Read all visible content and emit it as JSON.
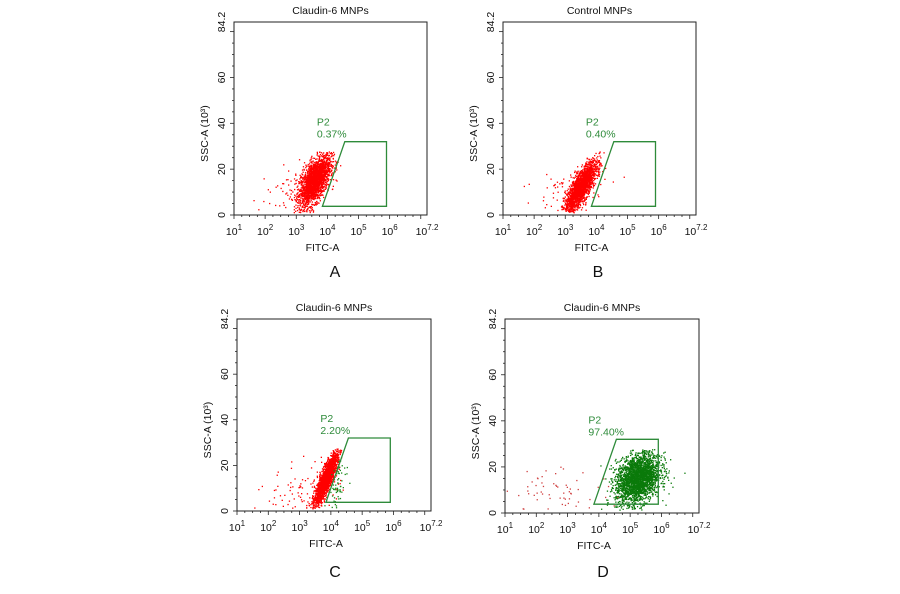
{
  "chart_data": [
    {
      "type": "scatter",
      "panel_label": "A",
      "title": "Claudin-6 MNPs",
      "xlabel": "FITC-A",
      "ylabel": "SSC-A (10³)",
      "xscale": "log",
      "xlim_log10": [
        1,
        7.2
      ],
      "ylim": [
        0,
        84.2
      ],
      "xtick_base": "10",
      "xtick_exponents": [
        "1",
        "2",
        "3",
        "4",
        "5",
        "6",
        "7.2"
      ],
      "yticks": [
        "0",
        "20",
        "40",
        "60",
        "84.2"
      ],
      "gate": {
        "name": "P2",
        "percent": "0.37%",
        "polygon_log10x_y": [
          [
            3.84,
            3.8
          ],
          [
            4.56,
            32
          ],
          [
            5.9,
            32
          ],
          [
            5.9,
            3.8
          ]
        ]
      },
      "populations": [
        {
          "color": "#ff0000",
          "count": 2200,
          "center_log10x": 3.6,
          "center_y": 15,
          "sd_log10x": 0.25,
          "sd_y": 5.5,
          "corr": 0.6
        },
        {
          "color": "#ff0000",
          "count": 90,
          "center_log10x": 3.0,
          "center_y": 11,
          "sd_log10x": 0.6,
          "sd_y": 6,
          "corr": 0.3
        }
      ]
    },
    {
      "type": "scatter",
      "panel_label": "B",
      "title": "Control MNPs",
      "xlabel": "FITC-A",
      "ylabel": "SSC-A (10³)",
      "xscale": "log",
      "xlim_log10": [
        1,
        7.2
      ],
      "ylim": [
        0,
        84.2
      ],
      "xtick_base": "10",
      "xtick_exponents": [
        "1",
        "2",
        "3",
        "4",
        "5",
        "6",
        "7.2"
      ],
      "yticks": [
        "0",
        "20",
        "40",
        "60",
        "84.2"
      ],
      "gate": {
        "name": "P2",
        "percent": "0.40%",
        "polygon_log10x_y": [
          [
            3.84,
            3.8
          ],
          [
            4.56,
            32
          ],
          [
            5.9,
            32
          ],
          [
            5.9,
            3.8
          ]
        ]
      },
      "populations": [
        {
          "color": "#ff0000",
          "count": 2000,
          "center_log10x": 3.5,
          "center_y": 12,
          "sd_log10x": 0.25,
          "sd_y": 5.5,
          "corr": 0.8
        },
        {
          "color": "#ff0000",
          "count": 70,
          "center_log10x": 3.2,
          "center_y": 11,
          "sd_log10x": 0.8,
          "sd_y": 6,
          "corr": 0.3
        }
      ]
    },
    {
      "type": "scatter",
      "panel_label": "C",
      "title": "Claudin-6 MNPs",
      "xlabel": "FITC-A",
      "ylabel": "SSC-A (10³)",
      "xscale": "log",
      "xlim_log10": [
        1,
        7.2
      ],
      "ylim": [
        0,
        84.2
      ],
      "xtick_base": "10",
      "xtick_exponents": [
        "1",
        "2",
        "3",
        "4",
        "5",
        "6",
        "7.2"
      ],
      "yticks": [
        "0",
        "20",
        "40",
        "60",
        "84.2"
      ],
      "gate": {
        "name": "P2",
        "percent": "2.20%",
        "polygon_log10x_y": [
          [
            3.84,
            3.8
          ],
          [
            4.56,
            32
          ],
          [
            5.9,
            32
          ],
          [
            5.9,
            3.8
          ]
        ]
      },
      "populations": [
        {
          "color": "#ff0000",
          "count": 2000,
          "center_log10x": 3.85,
          "center_y": 14,
          "sd_log10x": 0.18,
          "sd_y": 5.5,
          "corr": 0.85
        },
        {
          "color": "#ff0000",
          "count": 90,
          "center_log10x": 3.2,
          "center_y": 10,
          "sd_log10x": 0.6,
          "sd_y": 6,
          "corr": 0.3
        },
        {
          "color": "#1a8a1a",
          "count": 60,
          "center_log10x": 4.25,
          "center_y": 12,
          "sd_log10x": 0.15,
          "sd_y": 6,
          "corr": 0.6
        }
      ]
    },
    {
      "type": "scatter",
      "panel_label": "D",
      "title": "Claudin-6 MNPs",
      "xlabel": "FITC-A",
      "ylabel": "SSC-A (10³)",
      "xscale": "log",
      "xlim_log10": [
        1,
        7.2
      ],
      "ylim": [
        0,
        84.2
      ],
      "xtick_base": "10",
      "xtick_exponents": [
        "1",
        "2",
        "3",
        "4",
        "5",
        "6",
        "7.2"
      ],
      "yticks": [
        "0",
        "20",
        "40",
        "60",
        "84.2"
      ],
      "gate": {
        "name": "P2",
        "percent": "97.40%",
        "polygon_log10x_y": [
          [
            3.84,
            3.8
          ],
          [
            4.56,
            32
          ],
          [
            5.9,
            32
          ],
          [
            5.9,
            3.8
          ]
        ]
      },
      "populations": [
        {
          "color": "#0a7a0a",
          "count": 2500,
          "center_log10x": 5.25,
          "center_y": 15,
          "sd_log10x": 0.35,
          "sd_y": 5.5,
          "corr": 0.3
        },
        {
          "color": "#d04040",
          "count": 60,
          "center_log10x": 2.8,
          "center_y": 10,
          "sd_log10x": 0.8,
          "sd_y": 5,
          "corr": 0.1
        }
      ]
    }
  ],
  "colors": {
    "gate": "#2e8b3a",
    "gate_text": "#2e8b3a",
    "axis": "#222222"
  }
}
